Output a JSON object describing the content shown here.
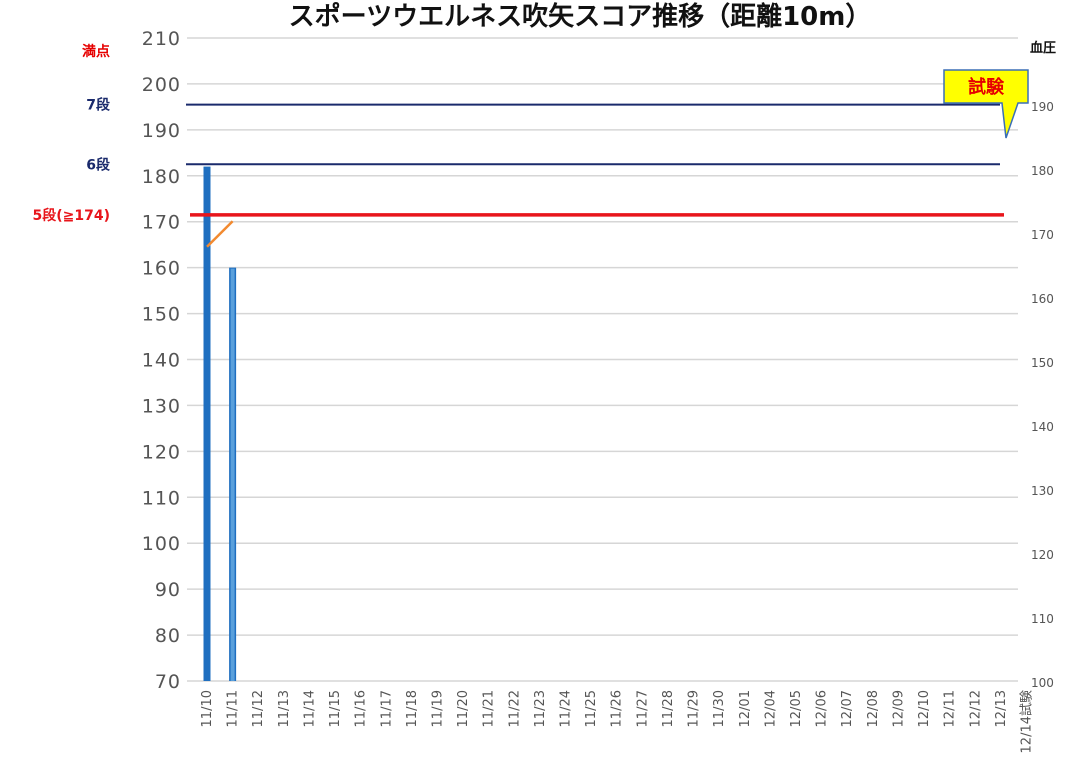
{
  "chart_data": {
    "type": "bar",
    "title": "スポーツウエルネス吹矢スコア推移（距離10m）",
    "categories": [
      "11/10",
      "11/11",
      "11/12",
      "11/13",
      "11/14",
      "11/15",
      "11/16",
      "11/17",
      "11/18",
      "11/19",
      "11/20",
      "11/21",
      "11/22",
      "11/23",
      "11/24",
      "11/25",
      "11/26",
      "11/27",
      "11/28",
      "11/29",
      "11/30",
      "12/01",
      "12/04",
      "12/05",
      "12/06",
      "12/07",
      "12/08",
      "12/09",
      "12/10",
      "12/11",
      "12/12",
      "12/13",
      "12/14試験"
    ],
    "series": [
      {
        "values": [
          182,
          160,
          null,
          null,
          null,
          null,
          null,
          null,
          null,
          null,
          null,
          null,
          null,
          null,
          null,
          null,
          null,
          null,
          null,
          null,
          null,
          null,
          null,
          null,
          null,
          null,
          null,
          null,
          null,
          null,
          null,
          null,
          null
        ],
        "color": "#1f6fc0"
      },
      {
        "axis": "right",
        "values": [
          168,
          172,
          null,
          null,
          null,
          null,
          null,
          null,
          null,
          null,
          null,
          null,
          null,
          null,
          null,
          null,
          null,
          null,
          null,
          null,
          null,
          null,
          null,
          null,
          null,
          null,
          null,
          null,
          null,
          null,
          null,
          null,
          null
        ],
        "color": "#f28a30"
      }
    ],
    "ylim": [
      70,
      210
    ],
    "yticks": [
      70,
      80,
      90,
      100,
      110,
      120,
      130,
      140,
      150,
      160,
      170,
      180,
      190,
      200,
      210
    ],
    "y2lim": [
      100,
      200
    ],
    "y2ticks": [
      100,
      110,
      120,
      130,
      140,
      150,
      160,
      170,
      180,
      190
    ],
    "y2label": "血圧",
    "reference_lines": [
      {
        "label": "満点",
        "value": 210,
        "color": "#e60000"
      },
      {
        "label": "7段",
        "value": 195.5,
        "color": "#1a2a6c",
        "draw": true
      },
      {
        "label": "6段",
        "value": 182.5,
        "color": "#1a2a6c",
        "draw": true
      },
      {
        "label": "5段(≧174)",
        "value": 171.5,
        "color": "#e8151b",
        "draw": true,
        "thick": true
      }
    ],
    "callout": {
      "text": "試験",
      "fill": "#ffff00",
      "text_color": "#e60000"
    },
    "grid": true
  }
}
